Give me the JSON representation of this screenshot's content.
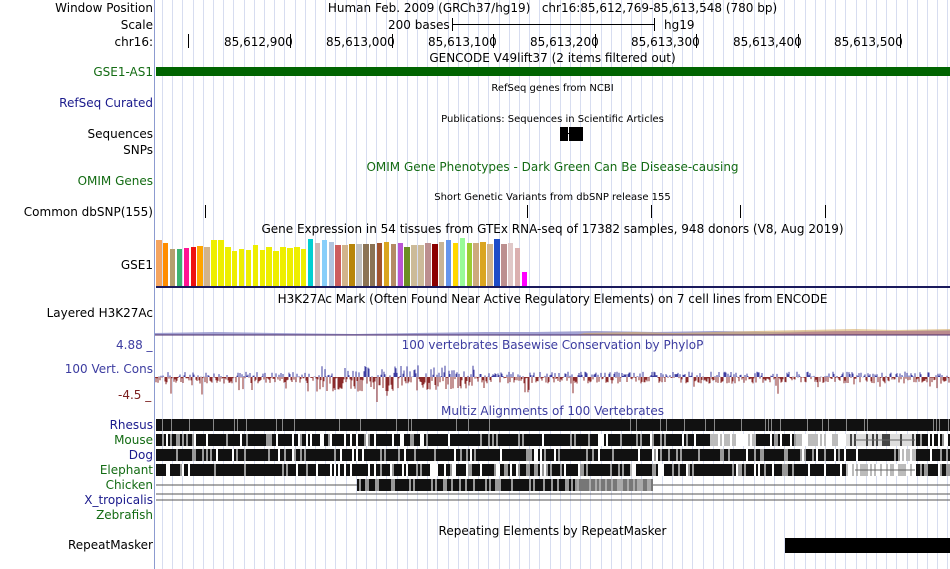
{
  "header": {
    "window_position_label": "Window Position",
    "window_position_value": "Human Feb. 2009 (GRCh37/hg19)   chr16:85,612,769-85,613,548 (780 bp)",
    "scale_label": "Scale",
    "scale_bases": "200 bases",
    "scale_assembly": "hg19",
    "chrom_label": "chr16:",
    "ruler_ticks": [
      "85,612,900",
      "85,613,000",
      "85,613,100",
      "85,613,200",
      "85,613,300",
      "85,613,400",
      "85,613,500"
    ]
  },
  "tracks": {
    "gencode": {
      "title": "GENCODE V49lift37 (2 items filtered out)",
      "label": "GSE1-AS1",
      "color": "#006400"
    },
    "refseq": {
      "title": "RefSeq genes from NCBI",
      "label": "RefSeq Curated"
    },
    "publications": {
      "title": "Publications: Sequences in Scientific Articles",
      "label": "Sequences"
    },
    "snps": {
      "label": "SNPs"
    },
    "omim": {
      "title": "OMIM Gene Phenotypes - Dark Green Can Be Disease-causing",
      "label": "OMIM Genes"
    },
    "dbsnp": {
      "title": "Short Genetic Variants from dbSNP release 155",
      "label": "Common dbSNP(155)"
    },
    "gtex": {
      "title": "Gene Expression in 54 tissues from GTEx RNA-seq of 17382 samples, 948 donors (V8, Aug 2019)",
      "label": "GSE1",
      "bars": [
        {
          "v": 0.95,
          "c": "#f4a460"
        },
        {
          "v": 0.9,
          "c": "#ff8c00"
        },
        {
          "v": 0.78,
          "c": "#b4a06e"
        },
        {
          "v": 0.78,
          "c": "#3cb371"
        },
        {
          "v": 0.8,
          "c": "#ff1493"
        },
        {
          "v": 0.82,
          "c": "#ee1111"
        },
        {
          "v": 0.84,
          "c": "#ffa500"
        },
        {
          "v": 0.82,
          "c": "#d2b48c"
        },
        {
          "v": 0.95,
          "c": "#eeee00"
        },
        {
          "v": 0.95,
          "c": "#eeee00"
        },
        {
          "v": 0.82,
          "c": "#eeee00"
        },
        {
          "v": 0.72,
          "c": "#eeee00"
        },
        {
          "v": 0.78,
          "c": "#eeee00"
        },
        {
          "v": 0.75,
          "c": "#eeee00"
        },
        {
          "v": 0.85,
          "c": "#eeee00"
        },
        {
          "v": 0.76,
          "c": "#eeee00"
        },
        {
          "v": 0.82,
          "c": "#eeee00"
        },
        {
          "v": 0.72,
          "c": "#eeee00"
        },
        {
          "v": 0.82,
          "c": "#eeee00"
        },
        {
          "v": 0.8,
          "c": "#eeee00"
        },
        {
          "v": 0.82,
          "c": "#eeee00"
        },
        {
          "v": 0.78,
          "c": "#eeee00"
        },
        {
          "v": 0.98,
          "c": "#00ced1"
        },
        {
          "v": 0.9,
          "c": "#cdb7b5"
        },
        {
          "v": 0.95,
          "c": "#87cefa"
        },
        {
          "v": 0.92,
          "c": "#b0c4de"
        },
        {
          "v": 0.85,
          "c": "#cd5c5c"
        },
        {
          "v": 0.85,
          "c": "#d2b48c"
        },
        {
          "v": 0.88,
          "c": "#b8860b"
        },
        {
          "v": 0.88,
          "c": "#c0c0c0"
        },
        {
          "v": 0.88,
          "c": "#8b7355"
        },
        {
          "v": 0.88,
          "c": "#8b7355"
        },
        {
          "v": 0.9,
          "c": "#a0522d"
        },
        {
          "v": 0.92,
          "c": "#daa520"
        },
        {
          "v": 0.88,
          "c": "#b48b64"
        },
        {
          "v": 0.9,
          "c": "#ba55d3"
        },
        {
          "v": 0.82,
          "c": "#6b8e23"
        },
        {
          "v": 0.86,
          "c": "#ccbb99"
        },
        {
          "v": 0.86,
          "c": "#ccbb99"
        },
        {
          "v": 0.9,
          "c": "#bc8f8f"
        },
        {
          "v": 0.88,
          "c": "#8b0000"
        },
        {
          "v": 0.92,
          "c": "#c8b496"
        },
        {
          "v": 0.95,
          "c": "#6495ed"
        },
        {
          "v": 0.9,
          "c": "#ffd700"
        },
        {
          "v": 1.0,
          "c": "#98fb98"
        },
        {
          "v": 0.9,
          "c": "#9acd32"
        },
        {
          "v": 0.9,
          "c": "#cdaa7d"
        },
        {
          "v": 0.92,
          "c": "#daa520"
        },
        {
          "v": 0.88,
          "c": "#d2b48c"
        },
        {
          "v": 0.98,
          "c": "#1e4cc8"
        },
        {
          "v": 0.88,
          "c": "#bc8f8f"
        },
        {
          "v": 0.9,
          "c": "#e0c8c8"
        },
        {
          "v": 0.8,
          "c": "#dbb0b0"
        },
        {
          "v": 0.3,
          "c": "#ff00ff"
        }
      ]
    },
    "h3k27ac": {
      "title": "H3K27Ac Mark (Often Found Near Active Regulatory Elements) on 7 cell lines from ENCODE",
      "label": "Layered H3K27Ac"
    },
    "cons": {
      "title": "100 vertebrates Basewise Conservation by PhyloP",
      "label": "100 Vert. Cons",
      "max": "4.88 _",
      "min": "-4.5 _"
    },
    "multiz": {
      "title": "Multiz Alignments of 100 Vertebrates",
      "species": [
        {
          "name": "Rhesus",
          "color": "#1a1a8c"
        },
        {
          "name": "Mouse",
          "color": "#136b13"
        },
        {
          "name": "Dog",
          "color": "#1a1a8c"
        },
        {
          "name": "Elephant",
          "color": "#136b13"
        },
        {
          "name": "Chicken",
          "color": "#136b13"
        },
        {
          "name": "X_tropicalis",
          "color": "#1a1a8c"
        },
        {
          "name": "Zebrafish",
          "color": "#136b13"
        }
      ]
    },
    "repeatmasker": {
      "title": "Repeating Elements by RepeatMasker",
      "label": "RepeatMasker"
    }
  }
}
